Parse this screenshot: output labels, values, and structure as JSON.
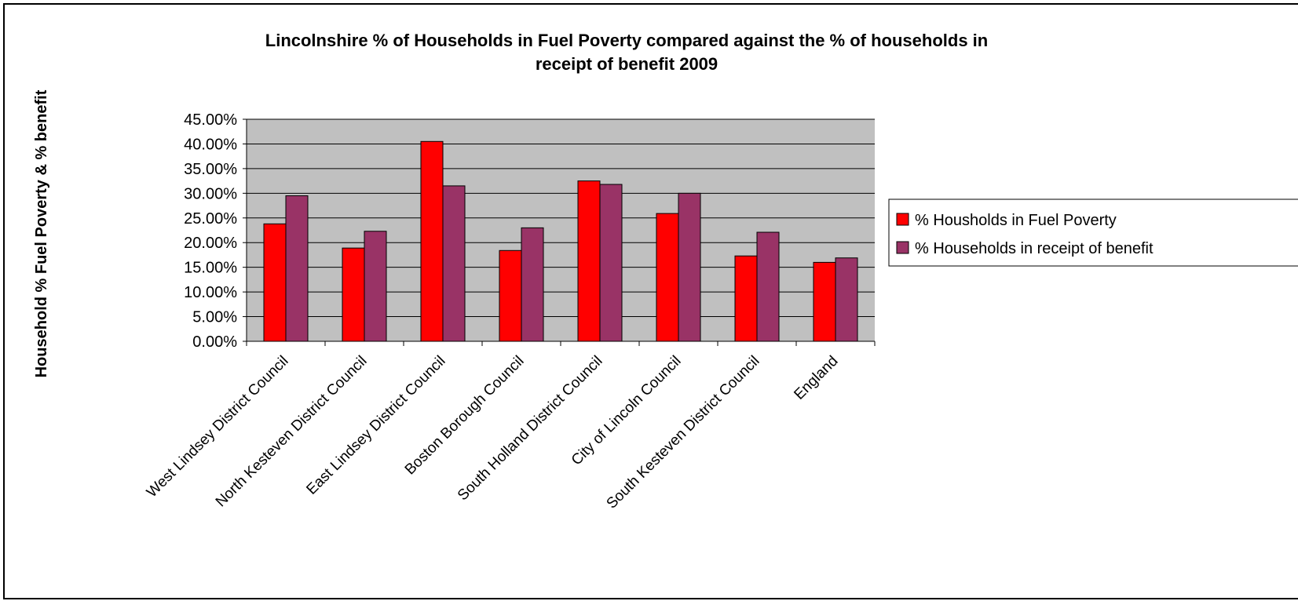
{
  "chart_data": {
    "type": "bar",
    "title_lines": [
      "Lincolnshire % of Households in Fuel Poverty compared against the % of households in",
      "receipt of benefit 2009"
    ],
    "xlabel": "",
    "ylabel": "Household % Fuel Poverty & % benefit",
    "ylim": [
      0,
      0.45
    ],
    "yticks": [
      0,
      0.05,
      0.1,
      0.15,
      0.2,
      0.25,
      0.3,
      0.35,
      0.4,
      0.45
    ],
    "ytick_labels": [
      "0.00%",
      "5.00%",
      "10.00%",
      "15.00%",
      "20.00%",
      "25.00%",
      "30.00%",
      "35.00%",
      "40.00%",
      "45.00%"
    ],
    "grid": true,
    "legend_position": "right",
    "plot_background": "#c0c0c0",
    "categories": [
      "West Lindsey District Council",
      "North Kesteven District Council",
      "East Lindsey District Council",
      "Boston Borough Council",
      "South Holland District Council",
      "City of Lincoln Council",
      "South Kesteven District Council",
      "England"
    ],
    "series": [
      {
        "name": "% Housholds in Fuel Poverty",
        "color": "#ff0000",
        "values": [
          0.238,
          0.189,
          0.405,
          0.184,
          0.325,
          0.259,
          0.173,
          0.16
        ]
      },
      {
        "name": "% Households in receipt of benefit",
        "color": "#993366",
        "values": [
          0.295,
          0.223,
          0.315,
          0.23,
          0.318,
          0.3,
          0.221,
          0.169
        ]
      }
    ]
  }
}
